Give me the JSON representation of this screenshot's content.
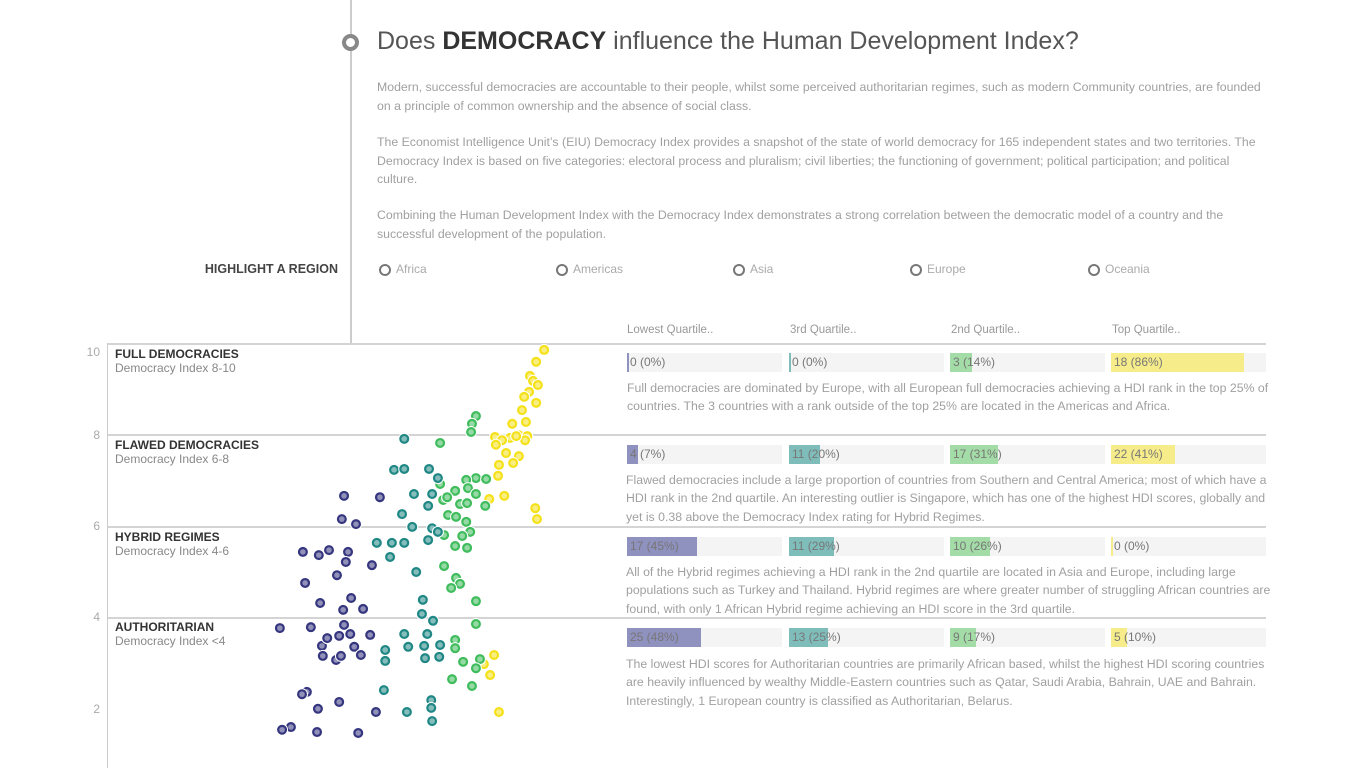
{
  "header": {
    "title_pre": "Does ",
    "title_bold": "DEMOCRACY",
    "title_post": " influence the Human Development Index?",
    "paragraphs": [
      "Modern, successful democracies are accountable to their people, whilst some perceived authoritarian regimes, such as modern Community countries, are founded on a principle of common ownership and the absence of social class.",
      "The Economist Intelligence Unit’s (EIU) Democracy Index provides a snapshot of the state of world democracy for 165 independent states and two territories. The Democracy Index is based on five categories: electoral process and pluralism; civil liberties; the functioning of government; political participation; and political culture.",
      "Combining the Human Development Index with the Democracy Index demonstrates a strong correlation between the democratic model of a country and the successful development of the population."
    ]
  },
  "highlight": {
    "label": "HIGHLIGHT A REGION",
    "options": [
      "Africa",
      "Americas",
      "Asia",
      "Europe",
      "Oceania"
    ]
  },
  "quartiles": {
    "headers": [
      "Lowest Quartile..",
      "3rd Quartile..",
      "2nd Quartile..",
      "Top Quartile.."
    ],
    "colors": [
      "#8f91bf",
      "#7fbdbb",
      "#a3dca6",
      "#f6ec8a"
    ]
  },
  "bands": [
    {
      "title": "FULL DEMOCRACIES",
      "subtitle": "Democracy Index 8-10",
      "bars": [
        {
          "label": "0 (0%)",
          "pct": 0
        },
        {
          "label": "0 (0%)",
          "pct": 0
        },
        {
          "label": "3 (14%)",
          "pct": 14
        },
        {
          "label": "18 (86%)",
          "pct": 86
        }
      ],
      "description": "Full democracies are dominated by Europe, with all European full democracies achieving a HDI rank in the top 25% of countries. The 3 countries with a rank outside of the top 25% are located in the Americas and Africa."
    },
    {
      "title": "FLAWED DEMOCRACIES",
      "subtitle": "Democracy Index 6-8",
      "bars": [
        {
          "label": "4 (7%)",
          "pct": 7
        },
        {
          "label": "11 (20%)",
          "pct": 20
        },
        {
          "label": "17 (31%)",
          "pct": 31
        },
        {
          "label": "22 (41%)",
          "pct": 41
        }
      ],
      "description": "Flawed democracies include a large proportion of countries from Southern and Central America; most of which have a HDI rank in the 2nd quartile. An interesting outlier is Singapore, which has one of the highest HDI scores, globally and yet is 0.38 above the Democracy Index rating for Hybrid Regimes."
    },
    {
      "title": "HYBRID REGIMES",
      "subtitle": "Democracy Index 4-6",
      "bars": [
        {
          "label": "17 (45%)",
          "pct": 45
        },
        {
          "label": "11 (29%)",
          "pct": 29
        },
        {
          "label": "10 (26%)",
          "pct": 26
        },
        {
          "label": "0 (0%)",
          "pct": 0
        }
      ],
      "description": "All of the Hybrid regimes achieving a HDI rank in the 2nd quartile are located in Asia and Europe, including large populations such as Turkey and Thailand. Hybrid regimes are where greater number of struggling African countries are found, with only 1 African Hybrid regime achieving an HDI score in the 3rd quartile."
    },
    {
      "title": "AUTHORITARIAN",
      "subtitle": "Democracy Index <4",
      "bars": [
        {
          "label": "25 (48%)",
          "pct": 48
        },
        {
          "label": "13 (25%)",
          "pct": 25
        },
        {
          "label": "9 (17%)",
          "pct": 17
        },
        {
          "label": "5 (10%)",
          "pct": 10
        }
      ],
      "description": "The lowest HDI scores for Authoritarian countries are primarily African based, whilst the highest HDI scoring countries are heavily influenced by wealthy Middle-Eastern countries such as Qatar, Saudi Arabia, Bahrain, UAE and Bahrain. Interestingly, 1 European country is classified as Authoritarian, Belarus."
    }
  ],
  "chart_data": {
    "type": "scatter",
    "xlabel": "",
    "ylabel": "",
    "yticks": [
      "10",
      "8",
      "6",
      "4",
      "2"
    ],
    "ylim": [
      0.7,
      10
    ],
    "xlim": [
      0.35,
      0.96
    ],
    "grid": true,
    "series": [
      {
        "color": "#f5e11a",
        "points": [
          [
            0.958,
            9.87
          ],
          [
            0.94,
            9.61
          ],
          [
            0.926,
            9.3
          ],
          [
            0.933,
            9.19
          ],
          [
            0.944,
            9.1
          ],
          [
            0.924,
            8.95
          ],
          [
            0.913,
            8.84
          ],
          [
            0.94,
            8.71
          ],
          [
            0.908,
            8.55
          ],
          [
            0.917,
            8.29
          ],
          [
            0.886,
            8.25
          ],
          [
            0.901,
            8.0
          ],
          [
            0.92,
            7.98
          ],
          [
            0.847,
            7.96
          ],
          [
            0.881,
            7.94
          ],
          [
            0.915,
            7.89
          ],
          [
            0.895,
            7.98
          ],
          [
            0.863,
            7.89
          ],
          [
            0.849,
            7.79
          ],
          [
            0.872,
            7.61
          ],
          [
            0.901,
            7.54
          ],
          [
            0.888,
            7.39
          ],
          [
            0.856,
            7.35
          ],
          [
            0.854,
            7.11
          ],
          [
            0.834,
            6.6
          ],
          [
            0.868,
            6.67
          ],
          [
            0.938,
            6.4
          ],
          [
            0.942,
            6.16
          ],
          [
            0.845,
            3.18
          ],
          [
            0.822,
            2.98
          ],
          [
            0.836,
            2.74
          ],
          [
            0.856,
            1.93
          ]
        ]
      },
      {
        "color": "#3fbc5c",
        "points": [
          [
            0.804,
            8.42
          ],
          [
            0.795,
            8.25
          ],
          [
            0.793,
            8.07
          ],
          [
            0.723,
            7.83
          ],
          [
            0.804,
            7.06
          ],
          [
            0.782,
            7.02
          ],
          [
            0.827,
            7.04
          ],
          [
            0.723,
            6.93
          ],
          [
            0.786,
            6.84
          ],
          [
            0.757,
            6.78
          ],
          [
            0.804,
            6.71
          ],
          [
            0.73,
            6.58
          ],
          [
            0.768,
            6.49
          ],
          [
            0.739,
            6.64
          ],
          [
            0.825,
            6.45
          ],
          [
            0.784,
            6.51
          ],
          [
            0.741,
            6.25
          ],
          [
            0.759,
            6.21
          ],
          [
            0.782,
            6.1
          ],
          [
            0.791,
            5.88
          ],
          [
            0.773,
            5.79
          ],
          [
            0.732,
            5.81
          ],
          [
            0.757,
            5.57
          ],
          [
            0.784,
            5.53
          ],
          [
            0.732,
            5.13
          ],
          [
            0.759,
            4.87
          ],
          [
            0.768,
            4.74
          ],
          [
            0.748,
            4.65
          ],
          [
            0.804,
            4.36
          ],
          [
            0.804,
            3.86
          ],
          [
            0.757,
            3.51
          ],
          [
            0.757,
            3.33
          ],
          [
            0.775,
            3.03
          ],
          [
            0.813,
            3.09
          ],
          [
            0.804,
            2.89
          ],
          [
            0.75,
            2.65
          ],
          [
            0.795,
            2.5
          ]
        ]
      },
      {
        "color": "#1f8784",
        "points": [
          [
            0.642,
            7.92
          ],
          [
            0.619,
            7.24
          ],
          [
            0.642,
            7.26
          ],
          [
            0.698,
            7.26
          ],
          [
            0.718,
            7.06
          ],
          [
            0.705,
            6.71
          ],
          [
            0.664,
            6.71
          ],
          [
            0.696,
            6.45
          ],
          [
            0.637,
            6.27
          ],
          [
            0.66,
            5.99
          ],
          [
            0.705,
            5.96
          ],
          [
            0.718,
            5.88
          ],
          [
            0.614,
            5.64
          ],
          [
            0.58,
            5.64
          ],
          [
            0.642,
            5.64
          ],
          [
            0.696,
            5.7
          ],
          [
            0.61,
            5.33
          ],
          [
            0.669,
            5.0
          ],
          [
            0.684,
            4.39
          ],
          [
            0.682,
            4.08
          ],
          [
            0.707,
            3.93
          ],
          [
            0.642,
            3.64
          ],
          [
            0.694,
            3.64
          ],
          [
            0.651,
            3.36
          ],
          [
            0.687,
            3.38
          ],
          [
            0.723,
            3.4
          ],
          [
            0.599,
            3.29
          ],
          [
            0.599,
            3.05
          ],
          [
            0.689,
            3.11
          ],
          [
            0.721,
            3.14
          ],
          [
            0.596,
            2.41
          ],
          [
            0.703,
            2.19
          ],
          [
            0.703,
            2.02
          ],
          [
            0.648,
            1.93
          ],
          [
            0.705,
            1.73
          ]
        ]
      },
      {
        "color": "#35367f",
        "points": [
          [
            0.506,
            6.67
          ],
          [
            0.587,
            6.64
          ],
          [
            0.501,
            6.16
          ],
          [
            0.533,
            6.05
          ],
          [
            0.472,
            5.48
          ],
          [
            0.413,
            5.44
          ],
          [
            0.449,
            5.37
          ],
          [
            0.515,
            5.44
          ],
          [
            0.51,
            5.22
          ],
          [
            0.569,
            5.15
          ],
          [
            0.49,
            4.93
          ],
          [
            0.418,
            4.76
          ],
          [
            0.452,
            4.32
          ],
          [
            0.522,
            4.43
          ],
          [
            0.504,
            4.17
          ],
          [
            0.549,
            4.19
          ],
          [
            0.361,
            3.77
          ],
          [
            0.431,
            3.79
          ],
          [
            0.506,
            3.84
          ],
          [
            0.52,
            3.64
          ],
          [
            0.456,
            3.38
          ],
          [
            0.495,
            3.6
          ],
          [
            0.468,
            3.55
          ],
          [
            0.565,
            3.62
          ],
          [
            0.529,
            3.36
          ],
          [
            0.458,
            3.16
          ],
          [
            0.488,
            3.07
          ],
          [
            0.499,
            3.16
          ],
          [
            0.544,
            3.18
          ],
          [
            0.422,
            2.37
          ],
          [
            0.411,
            2.32
          ],
          [
            0.495,
            2.15
          ],
          [
            0.447,
            2.0
          ],
          [
            0.578,
            1.93
          ],
          [
            0.386,
            1.6
          ],
          [
            0.366,
            1.54
          ],
          [
            0.445,
            1.49
          ],
          [
            0.538,
            1.47
          ]
        ]
      }
    ]
  }
}
